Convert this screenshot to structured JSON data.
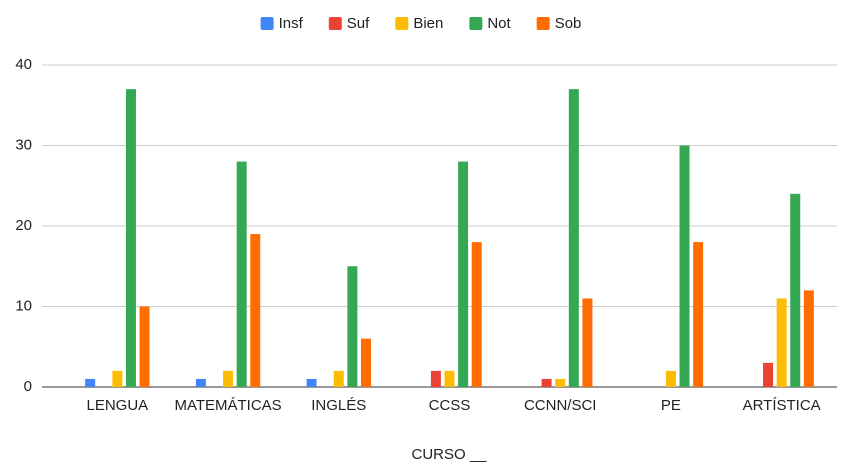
{
  "chart_data": {
    "type": "bar",
    "x_label": "CURSO __",
    "categories": [
      "LENGUA",
      "MATEMÁTICAS",
      "INGLÉS",
      "CCSS",
      "CCNN/SCI",
      "PE",
      "ARTÍSTICA"
    ],
    "series": [
      {
        "name": "Insf",
        "color": "#4285f4",
        "values": [
          1,
          1,
          1,
          0,
          0,
          0,
          0
        ]
      },
      {
        "name": "Suf",
        "color": "#ea4335",
        "values": [
          0,
          0,
          0,
          2,
          1,
          0,
          3
        ]
      },
      {
        "name": "Bien",
        "color": "#fbbc04",
        "values": [
          2,
          2,
          2,
          2,
          1,
          2,
          11
        ]
      },
      {
        "name": "Not",
        "color": "#34a853",
        "values": [
          37,
          28,
          15,
          28,
          37,
          30,
          24
        ]
      },
      {
        "name": "Sob",
        "color": "#ff6d01",
        "values": [
          10,
          19,
          6,
          18,
          11,
          18,
          12
        ]
      }
    ],
    "ylim": [
      0,
      40
    ],
    "yticks": [
      0,
      10,
      20,
      30,
      40
    ],
    "grid": true,
    "legend": "top"
  }
}
